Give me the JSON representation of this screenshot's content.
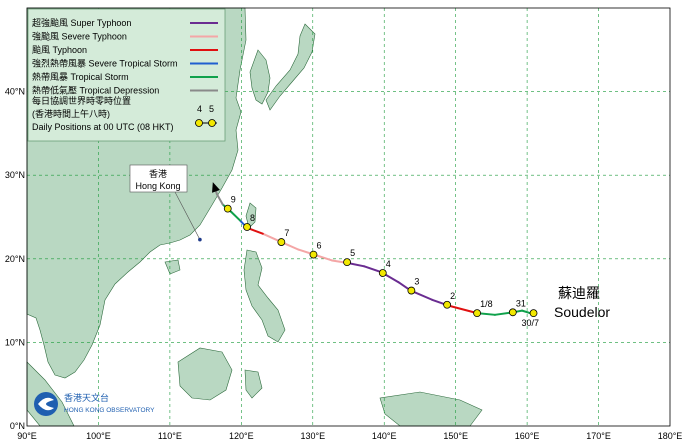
{
  "map": {
    "lon_range": [
      90,
      180
    ],
    "lat_range": [
      0,
      50
    ],
    "x_ticks": [
      "90°E",
      "100°E",
      "110°E",
      "120°E",
      "130°E",
      "140°E",
      "150°E",
      "160°E",
      "170°E",
      "180°E"
    ],
    "y_ticks": [
      "0°N",
      "10°N",
      "20°N",
      "30°N",
      "40°N"
    ],
    "colors": {
      "sea": "#ffffff",
      "land": "#b9d8c2",
      "coast": "#2e6b3e",
      "grid": "#1a9a3a"
    }
  },
  "legend": {
    "items": [
      {
        "label": "超強颱風  Super Typhoon",
        "color": "#6a2c91"
      },
      {
        "label": "強颱風  Severe Typhoon",
        "color": "#f4a6a6"
      },
      {
        "label": "颱風  Typhoon",
        "color": "#e01010"
      },
      {
        "label": "強烈熱帶風暴  Severe Tropical Storm",
        "color": "#1f5fd0"
      },
      {
        "label": "熱帶風暴  Tropical Storm",
        "color": "#0fa14b"
      },
      {
        "label": "熱帶低氣壓  Tropical Depression",
        "color": "#8a8a8a"
      }
    ],
    "note_line1": "每日協調世界時零時位置",
    "note_line2": "(香港時間上午八時)",
    "note_line3": "Daily Positions at 00 UTC (08 HKT)",
    "sample_num1": "4",
    "sample_num2": "5"
  },
  "hong_kong": {
    "label_cn": "香港",
    "label_en": "Hong Kong",
    "lon": 114.2,
    "lat": 22.3
  },
  "storm": {
    "name_cn": "蘇迪羅",
    "name_en": "Soudelor",
    "track": [
      {
        "lon": 160.8,
        "lat": 13.4,
        "cat": "Tropical Storm"
      },
      {
        "lon": 159.3,
        "lat": 13.8,
        "cat": "Tropical Storm"
      },
      {
        "lon": 158.0,
        "lat": 13.6,
        "cat": "Tropical Storm"
      },
      {
        "lon": 155.5,
        "lat": 13.3,
        "cat": "Tropical Storm"
      },
      {
        "lon": 153.0,
        "lat": 13.5,
        "cat": "Tropical Storm"
      },
      {
        "lon": 149.0,
        "lat": 14.4,
        "cat": "Typhoon"
      },
      {
        "lon": 146.7,
        "lat": 15.1,
        "cat": "Super Typhoon"
      },
      {
        "lon": 143.7,
        "lat": 16.2,
        "cat": "Super Typhoon"
      },
      {
        "lon": 142.0,
        "lat": 17.2,
        "cat": "Super Typhoon"
      },
      {
        "lon": 139.6,
        "lat": 18.4,
        "cat": "Super Typhoon"
      },
      {
        "lon": 137.2,
        "lat": 19.1,
        "cat": "Super Typhoon"
      },
      {
        "lon": 134.9,
        "lat": 19.5,
        "cat": "Super Typhoon"
      },
      {
        "lon": 132.7,
        "lat": 19.8,
        "cat": "Severe Typhoon"
      },
      {
        "lon": 130.2,
        "lat": 20.5,
        "cat": "Severe Typhoon"
      },
      {
        "lon": 128.0,
        "lat": 21.1,
        "cat": "Severe Typhoon"
      },
      {
        "lon": 125.6,
        "lat": 22.0,
        "cat": "Severe Typhoon"
      },
      {
        "lon": 123.0,
        "lat": 23.0,
        "cat": "Severe Typhoon"
      },
      {
        "lon": 120.8,
        "lat": 23.7,
        "cat": "Typhoon"
      },
      {
        "lon": 119.8,
        "lat": 24.6,
        "cat": "Severe Tropical Storm"
      },
      {
        "lon": 118.6,
        "lat": 25.6,
        "cat": "Tropical Storm"
      },
      {
        "lon": 117.4,
        "lat": 26.5,
        "cat": "Tropical Storm"
      },
      {
        "lon": 116.6,
        "lat": 27.7,
        "cat": "Tropical Depression"
      },
      {
        "lon": 116.2,
        "lat": 28.7,
        "cat": "Tropical Depression"
      }
    ],
    "daily_positions": [
      {
        "label": "30/7",
        "lon": 160.9,
        "lat": 13.5
      },
      {
        "label": "31",
        "lon": 158.0,
        "lat": 13.6
      },
      {
        "label": "1/8",
        "lon": 153.0,
        "lat": 13.5
      },
      {
        "label": "2",
        "lon": 148.8,
        "lat": 14.5
      },
      {
        "label": "3",
        "lon": 143.8,
        "lat": 16.2
      },
      {
        "label": "4",
        "lon": 139.8,
        "lat": 18.3
      },
      {
        "label": "5",
        "lon": 134.8,
        "lat": 19.6
      },
      {
        "label": "6",
        "lon": 130.1,
        "lat": 20.5
      },
      {
        "label": "7",
        "lon": 125.6,
        "lat": 22.0
      },
      {
        "label": "8",
        "lon": 120.8,
        "lat": 23.8
      },
      {
        "label": "9",
        "lon": 118.1,
        "lat": 26.0
      }
    ]
  },
  "logo": {
    "text_cn": "香港天文台",
    "text_en": "HONG KONG OBSERVATORY"
  }
}
